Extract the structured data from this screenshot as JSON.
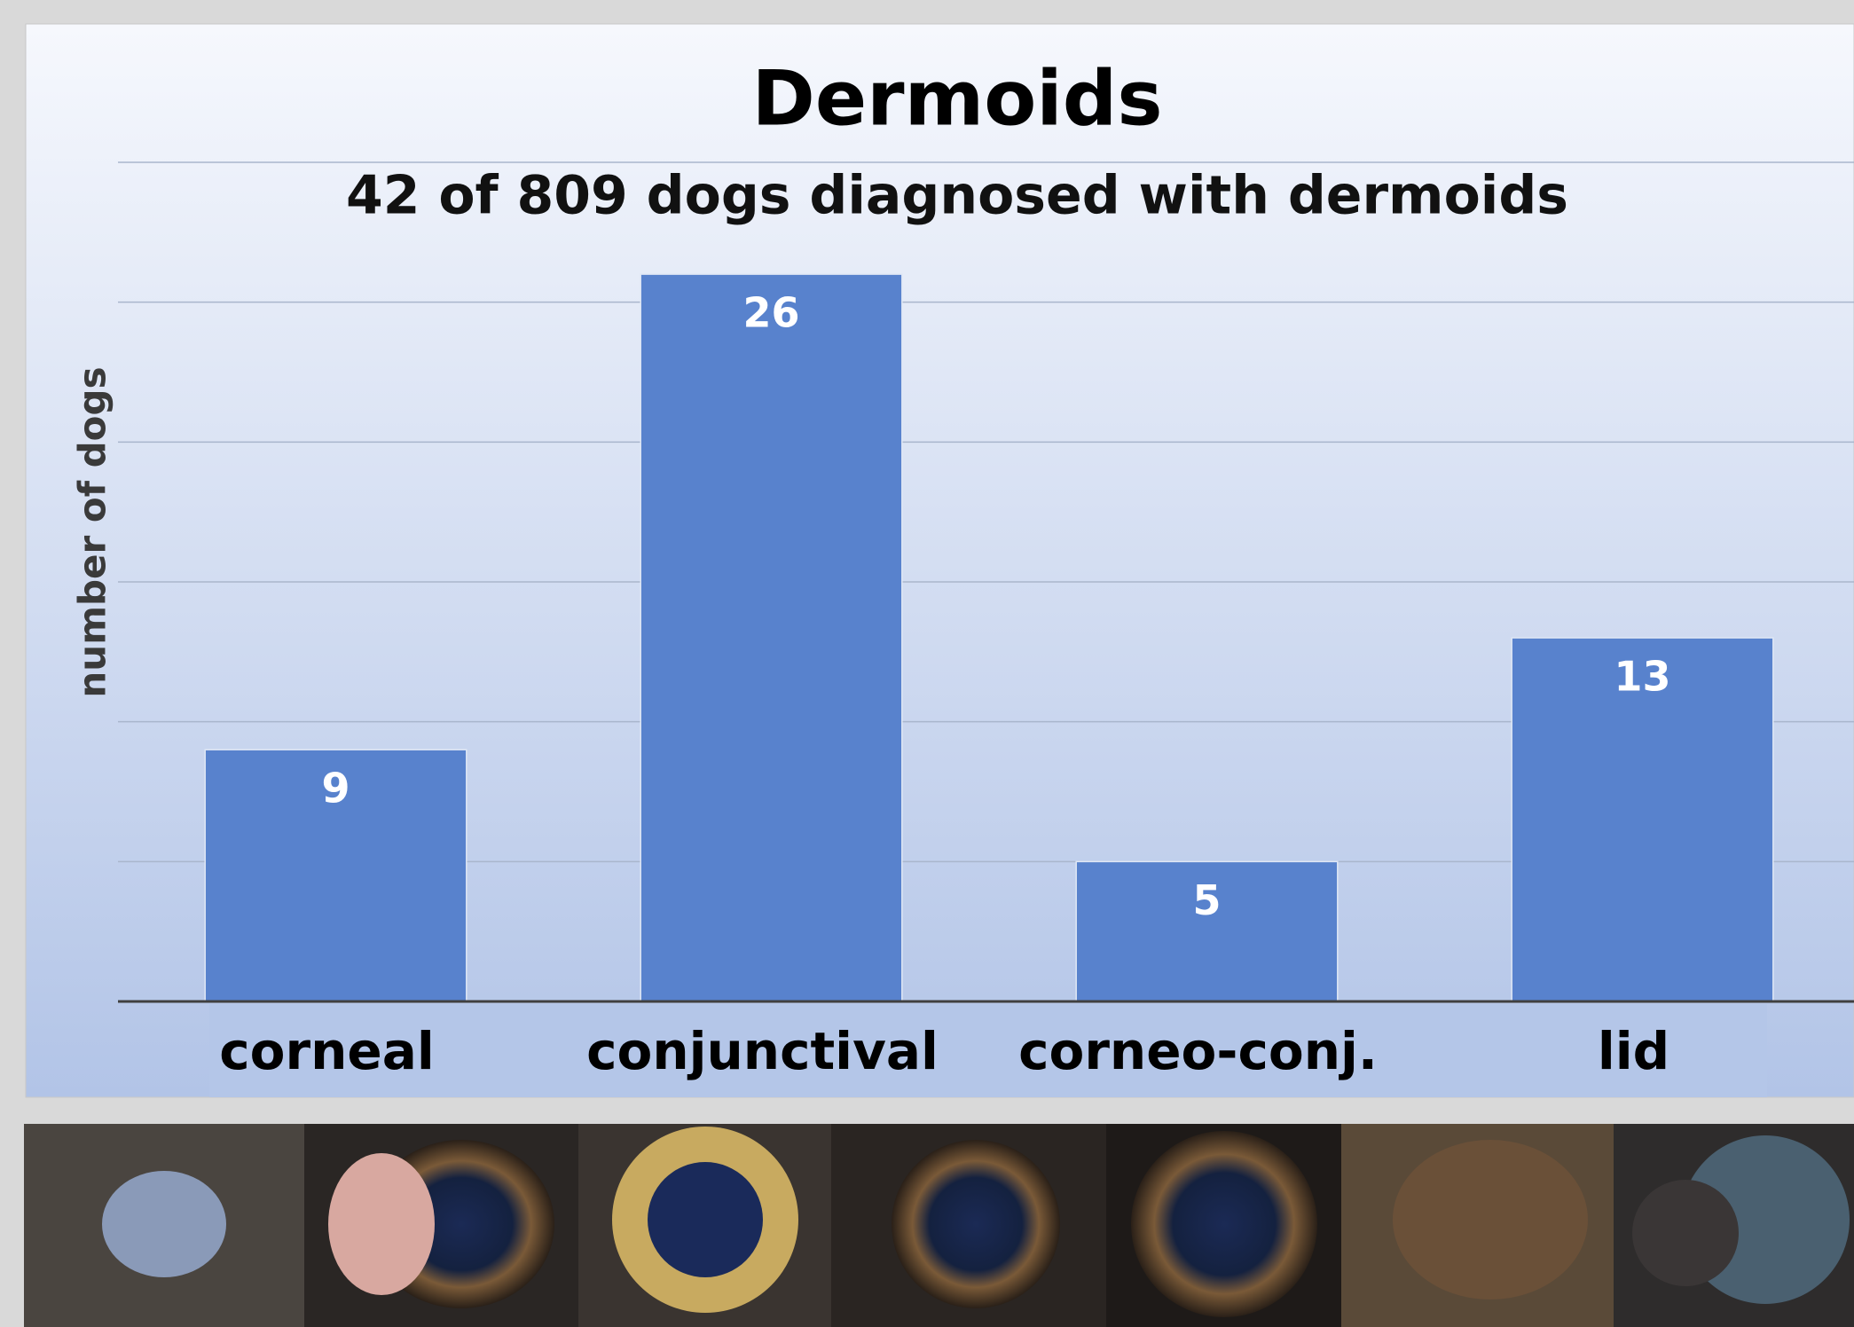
{
  "chart_data": {
    "type": "bar",
    "title": "Dermoids",
    "subtitle": "42 of 809 dogs diagnosed with dermoids",
    "y_label": "number of dogs",
    "categories": [
      "corneal",
      "conjunctival",
      "corneo-conj.",
      "lid"
    ],
    "values": [
      9,
      26,
      5,
      13
    ],
    "color": "#5882cd",
    "ylim": [
      0,
      30
    ],
    "yticks": [
      0,
      5,
      10,
      15,
      20,
      25,
      30
    ],
    "grid": true
  }
}
